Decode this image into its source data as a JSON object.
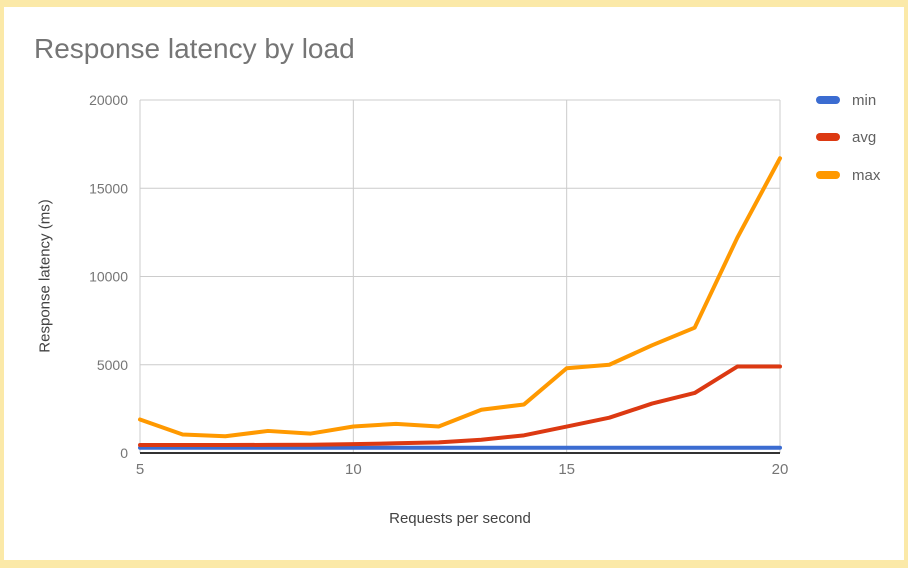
{
  "frame": {
    "border_color": "#fbe9a8",
    "background": "#ffffff"
  },
  "chart_data": {
    "type": "line",
    "title": "Response latency by load",
    "xlabel": "Requests per second",
    "ylabel": "Response latency (ms)",
    "x": [
      5,
      6,
      7,
      8,
      9,
      10,
      11,
      12,
      13,
      14,
      15,
      16,
      17,
      18,
      19,
      20
    ],
    "series": [
      {
        "name": "min",
        "color": "#3b6cd1",
        "values": [
          300,
          300,
          300,
          300,
          300,
          300,
          300,
          300,
          300,
          300,
          300,
          300,
          300,
          300,
          300,
          300
        ]
      },
      {
        "name": "avg",
        "color": "#dc3912",
        "values": [
          450,
          450,
          450,
          460,
          470,
          500,
          550,
          600,
          750,
          1000,
          1500,
          2000,
          2800,
          3400,
          4900,
          4900
        ]
      },
      {
        "name": "max",
        "color": "#ff9900",
        "values": [
          1900,
          1050,
          950,
          1250,
          1100,
          1500,
          1650,
          1500,
          2450,
          2750,
          4800,
          5000,
          6100,
          7100,
          12200,
          16700
        ]
      }
    ],
    "xlim": [
      5,
      20
    ],
    "ylim": [
      0,
      20000
    ],
    "x_ticks": [
      5,
      10,
      15,
      20
    ],
    "y_ticks": [
      0,
      5000,
      10000,
      15000,
      20000
    ],
    "grid": true,
    "legend_position": "right",
    "styles": {
      "gridline_color": "#cccccc",
      "baseline_color": "#333333",
      "tick_color": "#757575",
      "axis_title_color": "#424242",
      "title_color": "#757575",
      "legend_text_color": "#616161"
    }
  }
}
